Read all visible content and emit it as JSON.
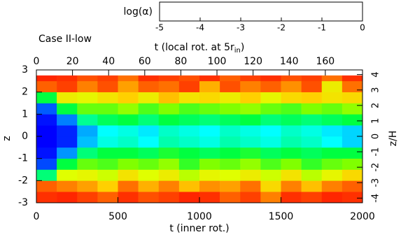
{
  "chart_data": {
    "type": "heatmap",
    "title": "Case II-low",
    "xlabel": "t (inner rot.)",
    "ylabel": "z",
    "x2label": {
      "text": "t (local rot. at 5r",
      "subscript": "in",
      "tail": ")"
    },
    "y2label": "z/H",
    "colorbar_label": "log(α)",
    "xlim": [
      0,
      2000
    ],
    "xticks": [
      0,
      500,
      1000,
      1500,
      2000
    ],
    "x2lim": [
      0,
      180.6
    ],
    "x2ticks": [
      0,
      20,
      40,
      60,
      80,
      100,
      120,
      140,
      160
    ],
    "ylim": [
      -3,
      3
    ],
    "yticks": [
      -3,
      -2,
      -1,
      0,
      1,
      2,
      3
    ],
    "y2lim": [
      -4.3,
      4.3
    ],
    "y2ticks": [
      -4,
      -3,
      -2,
      -1,
      0,
      1,
      2,
      3,
      4
    ],
    "clim": [
      -5,
      0
    ],
    "cticks": [
      -5,
      -4,
      -3,
      -2,
      -1,
      0
    ],
    "colormap": [
      {
        "value": -5,
        "color": "#0000ff"
      },
      {
        "value": -4.3,
        "color": "#0080ff"
      },
      {
        "value": -3.7,
        "color": "#00ffff"
      },
      {
        "value": -3,
        "color": "#00ff40"
      },
      {
        "value": -2.5,
        "color": "#80ff00"
      },
      {
        "value": -2,
        "color": "#e0ff00"
      },
      {
        "value": -1.5,
        "color": "#ffd000"
      },
      {
        "value": -1,
        "color": "#ff8000"
      },
      {
        "value": -0.5,
        "color": "#ff3000"
      },
      {
        "value": 0,
        "color": "#ff0000"
      }
    ],
    "x_edges": [
      0,
      125,
      250,
      375,
      500,
      625,
      750,
      875,
      1000,
      1125,
      1250,
      1375,
      1500,
      1625,
      1750,
      1875,
      2000
    ],
    "y_edges": [
      -3,
      -2.5,
      -2,
      -1.5,
      -1,
      -0.5,
      0,
      0.5,
      1,
      1.5,
      2,
      2.5,
      2.75
    ],
    "values": [
      [
        -0.5,
        -0.4,
        -0.6,
        -0.8,
        -0.5,
        -0.7,
        -0.6,
        -0.4,
        -0.5,
        -0.8,
        -0.6,
        -1.0,
        -0.5,
        -0.6,
        -0.4,
        -0.5
      ],
      [
        -0.8,
        -1.0,
        -1.2,
        -1.5,
        -0.9,
        -1.3,
        -1.0,
        -1.4,
        -1.1,
        -1.2,
        -0.9,
        -1.6,
        -1.0,
        -1.4,
        -1.0,
        -0.8
      ],
      [
        -3.2,
        -2.0,
        -1.9,
        -2.1,
        -1.7,
        -2.0,
        -1.8,
        -2.2,
        -1.9,
        -2.0,
        -1.8,
        -2.1,
        -1.7,
        -2.2,
        -1.9,
        -1.6
      ],
      [
        -4.6,
        -3.0,
        -2.6,
        -2.7,
        -2.5,
        -2.6,
        -2.4,
        -2.8,
        -2.5,
        -2.6,
        -2.4,
        -2.7,
        -2.5,
        -2.8,
        -2.6,
        -2.5
      ],
      [
        -4.9,
        -4.2,
        -3.2,
        -3.0,
        -3.0,
        -3.1,
        -2.9,
        -3.0,
        -3.1,
        -3.0,
        -2.9,
        -3.1,
        -3.0,
        -3.1,
        -3.0,
        -3.0
      ],
      [
        -5.0,
        -4.8,
        -4.0,
        -3.6,
        -3.5,
        -3.7,
        -3.4,
        -3.5,
        -3.6,
        -3.4,
        -3.5,
        -3.6,
        -3.4,
        -3.5,
        -3.7,
        -3.9
      ],
      [
        -5.0,
        -4.8,
        -4.1,
        -3.7,
        -3.6,
        -3.8,
        -3.5,
        -3.6,
        -3.7,
        -3.5,
        -3.6,
        -3.7,
        -3.5,
        -3.6,
        -3.8,
        -3.9
      ],
      [
        -4.9,
        -4.3,
        -3.3,
        -3.1,
        -3.0,
        -3.2,
        -3.0,
        -3.1,
        -3.2,
        -3.1,
        -3.0,
        -3.2,
        -3.1,
        -3.2,
        -3.1,
        -3.0
      ],
      [
        -4.5,
        -3.0,
        -2.6,
        -2.6,
        -2.4,
        -2.7,
        -2.5,
        -2.7,
        -2.6,
        -2.5,
        -2.4,
        -2.6,
        -2.7,
        -2.5,
        -2.6,
        -2.4
      ],
      [
        -3.0,
        -1.8,
        -1.9,
        -1.7,
        -1.5,
        -1.8,
        -1.4,
        -1.7,
        -1.6,
        -1.8,
        -1.5,
        -1.9,
        -1.6,
        -1.5,
        -1.7,
        -1.6
      ],
      [
        -0.8,
        -0.6,
        -1.0,
        -0.7,
        -1.2,
        -0.8,
        -0.9,
        -0.6,
        -1.3,
        -0.7,
        -1.0,
        -0.8,
        -1.1,
        -0.7,
        -1.8,
        -0.9
      ],
      [
        -0.4,
        -0.5,
        -0.7,
        -0.6,
        -0.9,
        -0.5,
        -0.6,
        -0.7,
        -0.5,
        -0.8,
        -0.6,
        -0.5,
        -0.7,
        -0.6,
        -0.9,
        -0.5
      ]
    ]
  }
}
